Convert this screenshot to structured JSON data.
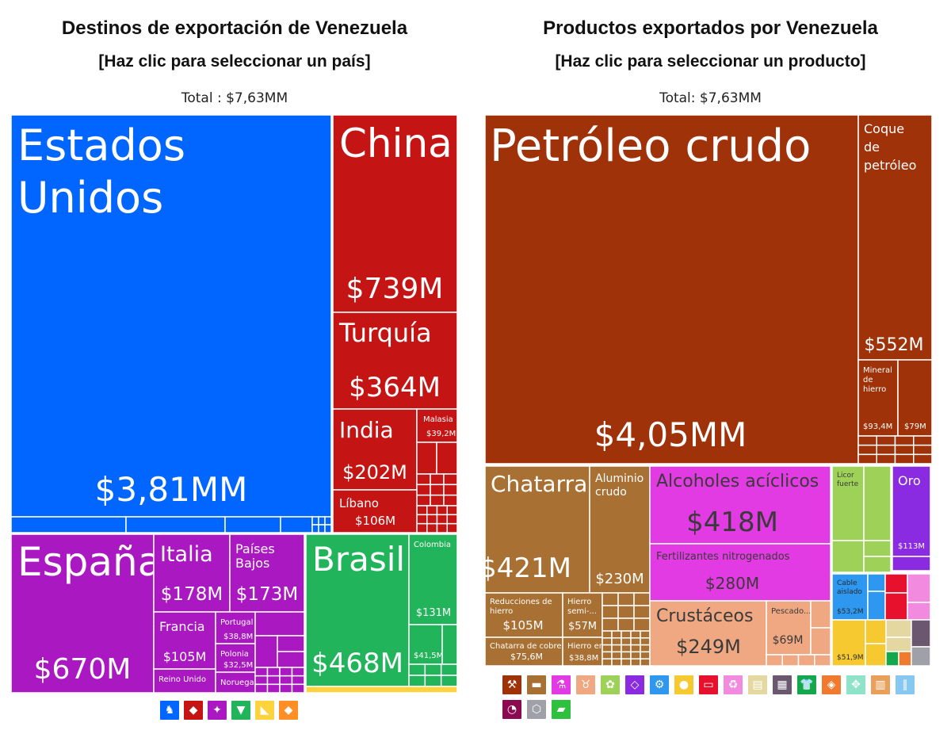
{
  "left": {
    "title": "Destinos de exportación de Venezuela",
    "subtitle": "[Haz clic para seleccionar un país]",
    "total": "Total : $7,63MM"
  },
  "right": {
    "title": "Productos exportados por Venezuela",
    "subtitle": "[Haz clic para seleccionar un producto]",
    "total": "Total: $7,63MM"
  },
  "colors": {
    "north_america": "#0066FF",
    "asia": "#C41514",
    "europe": "#AA18C1",
    "south_america": "#22B45A",
    "africa": "#FFD33D",
    "oceania": "#FF8F24",
    "minerals": "#A0320A",
    "metals": "#A87032",
    "chemicals": "#E33BE3",
    "animal": "#F0A882",
    "vegetable": "#9ED158",
    "precious": "#8A2BE2",
    "machines": "#2E97F0",
    "electric": "#E8112D",
    "food": "#F5C92F"
  },
  "chart_data": [
    {
      "type": "treemap",
      "title": "Destinos de exportación de Venezuela",
      "subtitle": "[Haz clic para seleccionar un país]",
      "total": "Total : $7,63MM",
      "items": [
        {
          "id": "estados-unidos",
          "label": "Estados Unidos",
          "value_label": "$3,81MM",
          "value": 3810,
          "group": "north_america"
        },
        {
          "id": "china",
          "label": "China",
          "value_label": "$739M",
          "value": 739,
          "group": "asia"
        },
        {
          "id": "turquia",
          "label": "Turquía",
          "value_label": "$364M",
          "value": 364,
          "group": "asia"
        },
        {
          "id": "india",
          "label": "India",
          "value_label": "$202M",
          "value": 202,
          "group": "asia"
        },
        {
          "id": "malasia",
          "label": "Malasia",
          "value_label": "$39,2M",
          "value": 39.2,
          "group": "asia"
        },
        {
          "id": "libano",
          "label": "Líbano",
          "value_label": "$106M",
          "value": 106,
          "group": "asia"
        },
        {
          "id": "espana",
          "label": "España",
          "value_label": "$670M",
          "value": 670,
          "group": "europe"
        },
        {
          "id": "italia",
          "label": "Italia",
          "value_label": "$178M",
          "value": 178,
          "group": "europe"
        },
        {
          "id": "paises-bajos",
          "label": "Países Bajos",
          "value_label": "$173M",
          "value": 173,
          "group": "europe"
        },
        {
          "id": "francia",
          "label": "Francia",
          "value_label": "$105M",
          "value": 105,
          "group": "europe"
        },
        {
          "id": "portugal",
          "label": "Portugal",
          "value_label": "$38,8M",
          "value": 38.8,
          "group": "europe"
        },
        {
          "id": "polonia",
          "label": "Polonia",
          "value_label": "$32,5M",
          "value": 32.5,
          "group": "europe"
        },
        {
          "id": "reino-unido",
          "label": "Reino Unido",
          "value_label": "",
          "group": "europe"
        },
        {
          "id": "noruega",
          "label": "Noruega",
          "value_label": "",
          "group": "europe"
        },
        {
          "id": "brasil",
          "label": "Brasil",
          "value_label": "$468M",
          "value": 468,
          "group": "south_america"
        },
        {
          "id": "colombia",
          "label": "Colombia",
          "value_label": "$131M",
          "value": 131,
          "group": "south_america"
        },
        {
          "id": "sa-small",
          "label": "",
          "value_label": "$41,5M",
          "value": 41.5,
          "group": "south_america"
        }
      ],
      "legend_icons": [
        {
          "name": "north-america-icon",
          "group": "north_america",
          "glyph": "♞"
        },
        {
          "name": "asia-icon",
          "group": "asia",
          "glyph": "◆"
        },
        {
          "name": "europe-icon",
          "group": "europe",
          "glyph": "✦"
        },
        {
          "name": "south-america-icon",
          "group": "south_america",
          "glyph": "▼"
        },
        {
          "name": "africa-icon",
          "group": "africa",
          "glyph": "◣"
        },
        {
          "name": "oceania-icon",
          "group": "oceania",
          "glyph": "◆"
        }
      ]
    },
    {
      "type": "treemap",
      "title": "Productos exportados por Venezuela",
      "subtitle": "[Haz clic para seleccionar un producto]",
      "total": "Total: $7,63MM",
      "items": [
        {
          "id": "petroleo-crudo",
          "label": "Petróleo crudo",
          "value_label": "$4,05MM",
          "value": 4050,
          "group": "minerals"
        },
        {
          "id": "coque-petroleo",
          "label": "Coque de petróleo",
          "value_label": "$552M",
          "value": 552,
          "group": "minerals"
        },
        {
          "id": "mineral-hierro",
          "label": "Mineral de hierro",
          "value_label": "$93,4M",
          "value": 93.4,
          "group": "minerals"
        },
        {
          "id": "mineral-79",
          "label": "",
          "value_label": "$79M",
          "value": 79,
          "group": "minerals"
        },
        {
          "id": "chatarra",
          "label": "Chatarra",
          "value_label": "$421M",
          "value": 421,
          "group": "metals"
        },
        {
          "id": "aluminio-crudo",
          "label": "Aluminio crudo",
          "value_label": "$230M",
          "value": 230,
          "group": "metals"
        },
        {
          "id": "reducciones-hierro",
          "label": "Reducciones de hierro",
          "value_label": "$105M",
          "value": 105,
          "group": "metals"
        },
        {
          "id": "chatarra-cobre",
          "label": "Chatarra de cobre",
          "value_label": "$75,6M",
          "value": 75.6,
          "group": "metals"
        },
        {
          "id": "hierro-semi",
          "label": "Hierro semi-...",
          "value_label": "$57M",
          "value": 57,
          "group": "metals"
        },
        {
          "id": "hierro-en",
          "label": "Hierro en...",
          "value_label": "$38,8M",
          "value": 38.8,
          "group": "metals"
        },
        {
          "id": "alcoholes-aciclicos",
          "label": "Alcoholes acíclicos",
          "value_label": "$418M",
          "value": 418,
          "group": "chemicals"
        },
        {
          "id": "fertilizantes",
          "label": "Fertilizantes nitrogenados",
          "value_label": "$280M",
          "value": 280,
          "group": "chemicals"
        },
        {
          "id": "crustaceos",
          "label": "Crustáceos",
          "value_label": "$249M",
          "value": 249,
          "group": "animal"
        },
        {
          "id": "pescado",
          "label": "Pescado...",
          "value_label": "$69M",
          "value": 69,
          "group": "animal"
        },
        {
          "id": "licor-fuerte",
          "label": "Licor fuerte",
          "value_label": "",
          "group": "vegetable"
        },
        {
          "id": "oro",
          "label": "Oro",
          "value_label": "$113M",
          "value": 113,
          "group": "precious"
        },
        {
          "id": "cable-aislado",
          "label": "Cable aislado",
          "value_label": "$53,2M",
          "value": 53.2,
          "group": "machines"
        },
        {
          "id": "food-51",
          "label": "",
          "value_label": "$51,9M",
          "value": 51.9,
          "group": "food"
        }
      ],
      "legend_icons": [
        {
          "name": "minerals-icon",
          "color": "#A0320A",
          "glyph": "⚒"
        },
        {
          "name": "metals-icon",
          "color": "#A87032",
          "glyph": "▬"
        },
        {
          "name": "chemicals-icon",
          "color": "#E33BE3",
          "glyph": "⚗"
        },
        {
          "name": "animal-icon",
          "color": "#F0A882",
          "glyph": "♉"
        },
        {
          "name": "vegetable-icon",
          "color": "#9ED158",
          "glyph": "✿"
        },
        {
          "name": "precious-stones-icon",
          "color": "#8A2BE2",
          "glyph": "◇"
        },
        {
          "name": "machines-icon",
          "color": "#2E97F0",
          "glyph": "⚙"
        },
        {
          "name": "food-icon",
          "color": "#F5C92F",
          "glyph": "●"
        },
        {
          "name": "electric-icon",
          "color": "#E8112D",
          "glyph": "▭"
        },
        {
          "name": "plastics-icon",
          "color": "#F28AE0",
          "glyph": "♻"
        },
        {
          "name": "paper-icon",
          "color": "#E4D8A0",
          "glyph": "▤"
        },
        {
          "name": "art-icon",
          "color": "#6B5870",
          "glyph": "▦"
        },
        {
          "name": "textiles-icon",
          "color": "#15A84B",
          "glyph": "👕"
        },
        {
          "name": "stone-icon",
          "color": "#F07A2D",
          "glyph": "◈"
        },
        {
          "name": "hides-icon",
          "color": "#8FE3C8",
          "glyph": "✥"
        },
        {
          "name": "wood-icon",
          "color": "#E8A05A",
          "glyph": "▥"
        },
        {
          "name": "transport-icon",
          "color": "#87C8F0",
          "glyph": "∥"
        },
        {
          "name": "instruments-icon",
          "color": "#8B0A50",
          "glyph": "◔"
        },
        {
          "name": "misc-icon",
          "color": "#A0A0A8",
          "glyph": "⬡"
        },
        {
          "name": "footwear-icon",
          "color": "#30C040",
          "glyph": "▰"
        }
      ]
    }
  ]
}
